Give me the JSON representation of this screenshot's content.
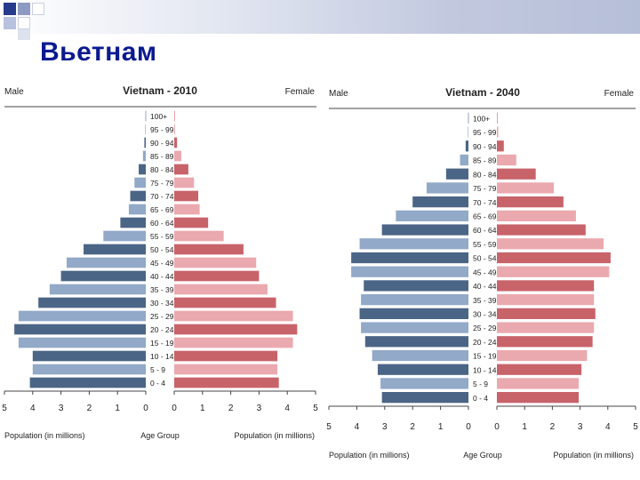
{
  "slide": {
    "title": "Вьетнам"
  },
  "colors": {
    "male_dark": "#4b6586",
    "male_light": "#92a9c8",
    "female_dark": "#c8636a",
    "female_light": "#eaa9ae",
    "title": "#0a1a8f"
  },
  "chart_data": [
    {
      "type": "bar",
      "title": "Vietnam - 2010",
      "left_label": "Male",
      "right_label": "Female",
      "xlabel_left": "Population (in millions)",
      "xlabel_center": "Age Group",
      "xlabel_right": "Population (in millions)",
      "xlim": [
        0,
        5
      ],
      "ticks": [
        5,
        4,
        3,
        2,
        1,
        0
      ],
      "ticks_right": [
        0,
        1,
        2,
        3,
        4,
        5
      ],
      "categories": [
        "0 - 4",
        "5 - 9",
        "10 - 14",
        "15 - 19",
        "20 - 24",
        "25 - 29",
        "30 - 34",
        "35 - 39",
        "40 - 44",
        "45 - 49",
        "50 - 54",
        "55 - 59",
        "60 - 64",
        "65 - 69",
        "70 - 74",
        "75 - 79",
        "80 - 84",
        "85 - 89",
        "90 - 94",
        "95 - 99",
        "100+"
      ],
      "series": [
        {
          "name": "Male",
          "values": [
            4.1,
            4.0,
            4.0,
            4.5,
            4.65,
            4.5,
            3.8,
            3.4,
            3.0,
            2.8,
            2.2,
            1.5,
            0.9,
            0.6,
            0.55,
            0.4,
            0.25,
            0.1,
            0.05,
            0.02,
            0.01
          ]
        },
        {
          "name": "Female",
          "values": [
            3.7,
            3.65,
            3.65,
            4.2,
            4.35,
            4.2,
            3.6,
            3.3,
            3.0,
            2.9,
            2.45,
            1.75,
            1.2,
            0.9,
            0.85,
            0.7,
            0.5,
            0.25,
            0.1,
            0.03,
            0.01
          ]
        }
      ]
    },
    {
      "type": "bar",
      "title": "Vietnam - 2040",
      "left_label": "Male",
      "right_label": "Female",
      "xlabel_left": "Population (in millions)",
      "xlabel_center": "Age Group",
      "xlabel_right": "Population (in millions)",
      "xlim": [
        0,
        5
      ],
      "ticks": [
        5,
        4,
        3,
        2,
        1,
        0
      ],
      "ticks_right": [
        0,
        1,
        2,
        3,
        4,
        5
      ],
      "categories": [
        "0 - 4",
        "5 - 9",
        "10 - 14",
        "15 - 19",
        "20 - 24",
        "25 - 29",
        "30 - 34",
        "35 - 39",
        "40 - 44",
        "45 - 49",
        "50 - 54",
        "55 - 59",
        "60 - 64",
        "65 - 69",
        "70 - 74",
        "75 - 79",
        "80 - 84",
        "85 - 89",
        "90 - 94",
        "95 - 99",
        "100+"
      ],
      "series": [
        {
          "name": "Male",
          "values": [
            3.1,
            3.15,
            3.25,
            3.45,
            3.7,
            3.85,
            3.9,
            3.85,
            3.75,
            4.2,
            4.2,
            3.9,
            3.1,
            2.6,
            2.0,
            1.5,
            0.8,
            0.3,
            0.1,
            0.02,
            0.01
          ]
        },
        {
          "name": "Female",
          "values": [
            2.95,
            2.95,
            3.05,
            3.25,
            3.45,
            3.5,
            3.55,
            3.5,
            3.5,
            4.05,
            4.1,
            3.85,
            3.2,
            2.85,
            2.4,
            2.05,
            1.4,
            0.7,
            0.25,
            0.05,
            0.01
          ]
        }
      ]
    }
  ]
}
